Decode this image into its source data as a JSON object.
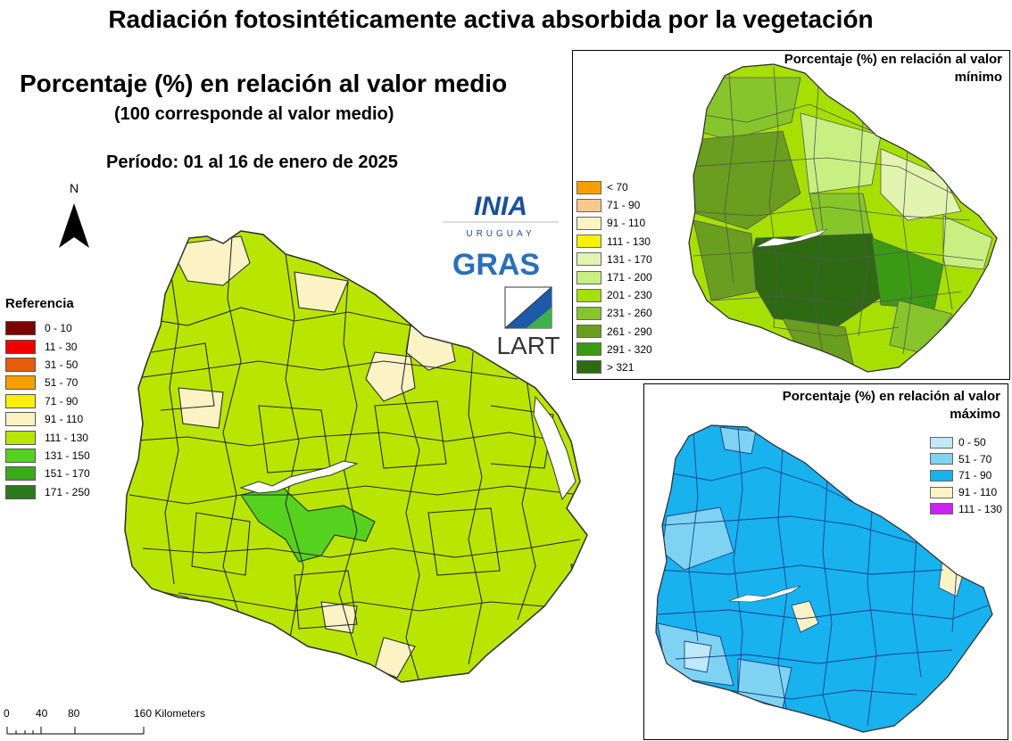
{
  "title": "Radiación fotosintéticamente activa absorbida por la vegetación",
  "subtitle": "Porcentaje (%) en relación al valor medio",
  "note": "(100 corresponde al valor medio)",
  "period": "Período: 01 al 16 de enero de 2025",
  "north_label": "N",
  "legend": {
    "title": "Referencia",
    "items": [
      {
        "label": "0 - 10",
        "color": "#7a0000"
      },
      {
        "label": "11 - 30",
        "color": "#ee0000"
      },
      {
        "label": "31 - 50",
        "color": "#e65c0a"
      },
      {
        "label": "51 - 70",
        "color": "#f5a000"
      },
      {
        "label": "71 - 90",
        "color": "#f7f000"
      },
      {
        "label": "91 - 110",
        "color": "#fbf3c4"
      },
      {
        "label": "111 - 130",
        "color": "#b8e600"
      },
      {
        "label": "131 - 150",
        "color": "#55d21e"
      },
      {
        "label": "151 - 170",
        "color": "#3aaa1a"
      },
      {
        "label": "171 - 250",
        "color": "#2a7a1e"
      }
    ]
  },
  "logos": {
    "inia": "INIA",
    "inia_sub": "URUGUAY",
    "gras": "GRAS",
    "lart": "LART"
  },
  "inset_min": {
    "title": "Porcentaje (%) en relación al valor mínimo",
    "items": [
      {
        "label": "< 70",
        "color": "#f5a000"
      },
      {
        "label": "71 - 90",
        "color": "#f8c98a"
      },
      {
        "label": "91 - 110",
        "color": "#fbf3c4"
      },
      {
        "label": "111 - 130",
        "color": "#f7f000"
      },
      {
        "label": "131 - 170",
        "color": "#e2f5b0"
      },
      {
        "label": "171 - 200",
        "color": "#c8ef82"
      },
      {
        "label": "201 - 230",
        "color": "#a6e000"
      },
      {
        "label": "231 - 260",
        "color": "#86c62a"
      },
      {
        "label": "261 - 290",
        "color": "#6a9e1e"
      },
      {
        "label": "291 - 320",
        "color": "#3a9a14"
      },
      {
        "label": "> 321",
        "color": "#2d6a12"
      }
    ]
  },
  "inset_max": {
    "title": "Porcentaje (%) en relación al valor máximo",
    "items": [
      {
        "label": "0 - 50",
        "color": "#bfe8f8"
      },
      {
        "label": "51 - 70",
        "color": "#7fd3f2"
      },
      {
        "label": "71 - 90",
        "color": "#18b2ee"
      },
      {
        "label": "91 - 110",
        "color": "#fbf3c4"
      },
      {
        "label": "111 - 130",
        "color": "#cc22ee"
      }
    ]
  },
  "scale": {
    "ticks": [
      "0",
      "40",
      "80",
      "160 Kilometers"
    ]
  }
}
